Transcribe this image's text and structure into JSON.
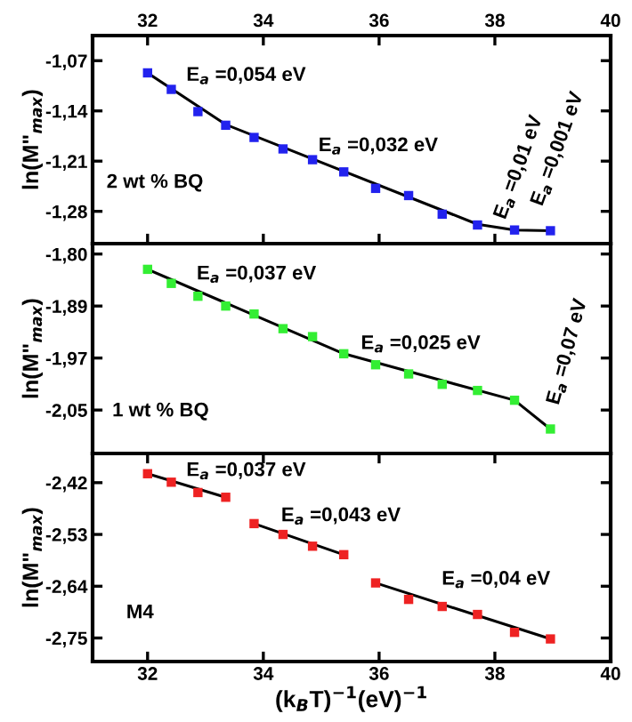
{
  "chart_data": [
    {
      "type": "scatter",
      "ylabel": "ln(M\"$_{max}$)",
      "xlim": [
        31.05,
        40
      ],
      "x2lim": [
        31.05,
        40
      ],
      "x2ticks": [
        32,
        34,
        36,
        38,
        40
      ],
      "tick_labels": "y",
      "ylim": [
        -1.325,
        -1.035
      ],
      "yticks": [
        {
          "value": -1.07,
          "label": "-1,07"
        },
        {
          "value": -1.14,
          "label": "-1,14"
        },
        {
          "value": -1.21,
          "label": "-1,21"
        },
        {
          "value": -1.28,
          "label": "-1,28"
        }
      ],
      "grid": false,
      "series": [
        {
          "marker": "square",
          "color": "#2222ee",
          "x": [
            32.0,
            32.41,
            32.87,
            33.35,
            33.84,
            34.34,
            34.85,
            35.39,
            35.94,
            36.51,
            37.09,
            37.7,
            38.34,
            38.96
          ],
          "values": [
            -1.087,
            -1.11,
            -1.141,
            -1.16,
            -1.177,
            -1.193,
            -1.208,
            -1.225,
            -1.248,
            -1.258,
            -1.284,
            -1.299,
            -1.306,
            -1.307
          ]
        },
        {
          "type": "line",
          "color": "#000000",
          "x": [
            32.0,
            33.35,
            37.7,
            38.34,
            38.96
          ],
          "values": [
            -1.087,
            -1.159,
            -1.298,
            -1.306,
            -1.307
          ]
        }
      ],
      "annotations": [
        "E$_{a}$ =0,054 eV",
        "E$_{a}$ =0,032 eV",
        "E$_{a}$ =0,01 eV",
        "E$_{a}$ =0,001 eV",
        "2 wt % BQ"
      ]
    },
    {
      "type": "scatter",
      "ylabel": "ln(M\"$_{max}$)",
      "xlim": [
        31.05,
        40
      ],
      "tick_labels": "y",
      "ylim": [
        -2.126,
        -1.783
      ],
      "yticks": [
        {
          "value": -1.8,
          "label": "-1,80"
        },
        {
          "value": -1.885,
          "label": "-1,89"
        },
        {
          "value": -1.97,
          "label": "-1,97"
        },
        {
          "value": -2.055,
          "label": "-2,05"
        }
      ],
      "grid": false,
      "series": [
        {
          "marker": "square",
          "color": "#33ee33",
          "x": [
            32.0,
            32.41,
            32.87,
            33.35,
            33.84,
            34.34,
            34.85,
            35.39,
            35.94,
            36.51,
            37.09,
            37.7,
            38.34,
            38.96
          ],
          "values": [
            -1.825,
            -1.848,
            -1.869,
            -1.885,
            -1.898,
            -1.922,
            -1.935,
            -1.963,
            -1.981,
            -1.996,
            -2.013,
            -2.023,
            -2.039,
            -2.086
          ]
        },
        {
          "type": "line",
          "color": "#000000",
          "x": [
            32.0,
            35.39,
            38.34,
            38.96
          ],
          "values": [
            -1.825,
            -1.963,
            -2.039,
            -2.086
          ]
        }
      ],
      "annotations": [
        "E$_{a}$ =0,037 eV",
        "E$_{a}$ =0,025 eV",
        "E$_{a}$ =0,07 eV",
        "1 wt % BQ"
      ]
    },
    {
      "type": "scatter",
      "ylabel": "ln(M\"$_{max}$)",
      "xlabel": "(k$_{B}$T)$^{−1}$(eV)$^{−1}$",
      "xlim": [
        31.05,
        40
      ],
      "xticks": [
        32,
        34,
        36,
        38,
        40
      ],
      "ylim": [
        -2.8,
        -2.358
      ],
      "yticks": [
        {
          "value": -2.42,
          "label": "-2,42"
        },
        {
          "value": -2.53,
          "label": "-2,53"
        },
        {
          "value": -2.64,
          "label": "-2,64"
        },
        {
          "value": -2.75,
          "label": "-2,75"
        }
      ],
      "grid": false,
      "series": [
        {
          "marker": "square",
          "color": "#ee2222",
          "x": [
            32.0,
            32.41,
            32.87,
            33.35,
            33.84,
            34.34,
            34.85,
            35.39,
            35.94,
            36.51,
            37.09,
            37.7,
            38.34,
            38.96
          ],
          "values": [
            -2.401,
            -2.419,
            -2.441,
            -2.451,
            -2.507,
            -2.53,
            -2.555,
            -2.573,
            -2.633,
            -2.668,
            -2.683,
            -2.7,
            -2.738,
            -2.752
          ]
        },
        {
          "type": "line",
          "color": "#000000",
          "x": [
            32.0,
            33.35
          ],
          "values": [
            -2.401,
            -2.451
          ]
        },
        {
          "type": "line",
          "color": "#000000",
          "x": [
            33.84,
            35.39
          ],
          "values": [
            -2.507,
            -2.573
          ]
        },
        {
          "type": "line",
          "color": "#000000",
          "x": [
            35.94,
            38.96
          ],
          "values": [
            -2.633,
            -2.752
          ]
        }
      ],
      "annotations": [
        "E$_{a}$ =0,037 eV",
        "E$_{a}$ =0,043 eV",
        "E$_{a}$ =0,04 eV",
        "M4"
      ]
    }
  ]
}
